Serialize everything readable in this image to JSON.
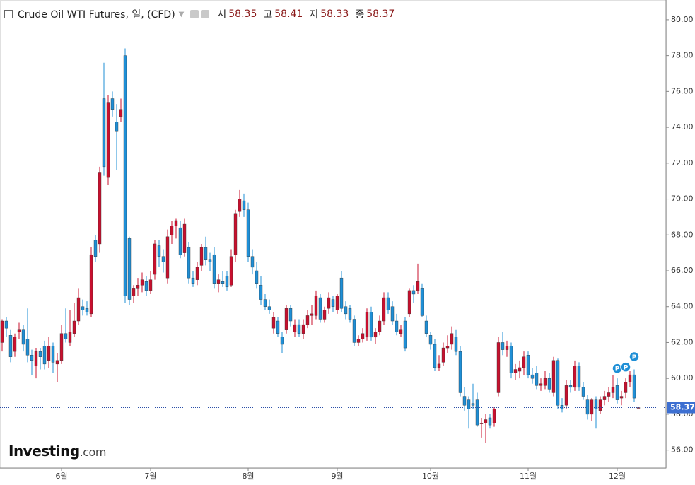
{
  "header": {
    "title": "Crude Oil WTI Futures, 일, (CFD)",
    "open_label": "시",
    "open": 58.35,
    "high_label": "고",
    "high": 58.41,
    "low_label": "저",
    "low": 58.33,
    "close_label": "종",
    "close": 58.37
  },
  "logo": {
    "brand": "Investing",
    "suffix": ".com"
  },
  "chart_data": {
    "type": "candlestick",
    "up_color": "#c8102e",
    "down_color": "#1f8fd6",
    "ylim": [
      55.0,
      81.1
    ],
    "yticks": [
      {
        "value": 56,
        "label": "56.00"
      },
      {
        "value": 58,
        "label": "58.00"
      },
      {
        "value": 60,
        "label": "60.00"
      },
      {
        "value": 62,
        "label": "62.00"
      },
      {
        "value": 64,
        "label": "64.00"
      },
      {
        "value": 66,
        "label": "66.00"
      },
      {
        "value": 68,
        "label": "68.00"
      },
      {
        "value": 70,
        "label": "70.00"
      },
      {
        "value": 72,
        "label": "72.00"
      },
      {
        "value": 74,
        "label": "74.00"
      },
      {
        "value": 76,
        "label": "76.00"
      },
      {
        "value": 78,
        "label": "78.00"
      },
      {
        "value": 80,
        "label": "80.00"
      }
    ],
    "xticks": [
      {
        "value": 14,
        "label": "6월"
      },
      {
        "value": 35,
        "label": "7월"
      },
      {
        "value": 58,
        "label": "8월"
      },
      {
        "value": 79,
        "label": "9월"
      },
      {
        "value": 101,
        "label": "10월"
      },
      {
        "value": 124,
        "label": "11월"
      },
      {
        "value": 145,
        "label": "12월"
      }
    ],
    "annotations": [
      {
        "index": 145,
        "label": "P"
      },
      {
        "index": 147,
        "label": "P"
      },
      {
        "index": 149,
        "label": "P"
      }
    ],
    "ohlc": [
      [
        62.0,
        63.3,
        61.5,
        63.2
      ],
      [
        63.2,
        63.4,
        62.3,
        62.8
      ],
      [
        62.4,
        62.7,
        60.9,
        61.2
      ],
      [
        61.5,
        62.5,
        61.2,
        62.3
      ],
      [
        62.6,
        63.1,
        62.2,
        62.7
      ],
      [
        62.7,
        63.0,
        61.5,
        61.9
      ],
      [
        62.2,
        63.9,
        60.9,
        61.3
      ],
      [
        61.3,
        61.6,
        60.2,
        61.0
      ],
      [
        60.7,
        61.7,
        60.0,
        61.5
      ],
      [
        61.5,
        61.7,
        60.5,
        61.2
      ],
      [
        61.8,
        62.1,
        60.5,
        60.8
      ],
      [
        61.0,
        62.3,
        60.6,
        61.8
      ],
      [
        61.8,
        62.0,
        60.3,
        60.9
      ],
      [
        60.8,
        61.4,
        59.8,
        61.0
      ],
      [
        61.0,
        63.0,
        60.8,
        62.5
      ],
      [
        62.5,
        63.9,
        62.0,
        62.2
      ],
      [
        62.0,
        63.8,
        61.8,
        62.6
      ],
      [
        62.5,
        64.2,
        62.3,
        63.2
      ],
      [
        63.2,
        65.0,
        63.0,
        64.5
      ],
      [
        64.0,
        64.4,
        63.5,
        63.8
      ],
      [
        63.9,
        64.3,
        63.5,
        63.7
      ],
      [
        63.6,
        67.3,
        63.4,
        66.9
      ],
      [
        67.7,
        68.0,
        66.5,
        66.8
      ],
      [
        67.5,
        71.8,
        67.0,
        71.5
      ],
      [
        75.6,
        77.6,
        71.3,
        71.8
      ],
      [
        71.2,
        75.8,
        70.8,
        75.4
      ],
      [
        75.6,
        76.0,
        74.6,
        75.0
      ],
      [
        74.3,
        75.3,
        71.6,
        73.8
      ],
      [
        74.6,
        75.6,
        74.3,
        75.0
      ],
      [
        78.0,
        78.4,
        64.2,
        64.6
      ],
      [
        67.8,
        67.9,
        64.1,
        64.4
      ],
      [
        64.6,
        65.2,
        64.2,
        65.0
      ],
      [
        65.0,
        65.6,
        64.6,
        65.2
      ],
      [
        65.2,
        65.9,
        64.8,
        65.5
      ],
      [
        65.4,
        65.7,
        64.6,
        64.9
      ],
      [
        64.9,
        66.0,
        64.7,
        65.5
      ],
      [
        65.8,
        67.7,
        65.5,
        67.5
      ],
      [
        67.4,
        67.7,
        66.2,
        66.8
      ],
      [
        66.8,
        67.2,
        65.9,
        66.5
      ],
      [
        65.6,
        68.3,
        65.3,
        67.9
      ],
      [
        68.0,
        68.8,
        67.5,
        68.5
      ],
      [
        68.5,
        68.9,
        67.8,
        68.8
      ],
      [
        68.4,
        68.8,
        66.7,
        66.9
      ],
      [
        67.0,
        68.9,
        66.8,
        68.6
      ],
      [
        67.3,
        67.6,
        65.3,
        65.6
      ],
      [
        65.6,
        66.0,
        65.1,
        65.3
      ],
      [
        65.5,
        66.5,
        65.2,
        66.2
      ],
      [
        66.3,
        67.5,
        66.0,
        67.3
      ],
      [
        67.3,
        67.9,
        66.3,
        66.6
      ],
      [
        66.6,
        67.0,
        66.0,
        66.5
      ],
      [
        66.9,
        67.3,
        65.0,
        65.3
      ],
      [
        65.3,
        65.8,
        64.8,
        65.5
      ],
      [
        65.4,
        66.0,
        65.1,
        65.3
      ],
      [
        65.7,
        66.0,
        64.9,
        65.1
      ],
      [
        65.2,
        67.2,
        65.1,
        66.8
      ],
      [
        66.9,
        69.4,
        66.5,
        69.2
      ],
      [
        69.3,
        70.5,
        69.0,
        70.0
      ],
      [
        69.9,
        70.3,
        69.0,
        69.4
      ],
      [
        69.4,
        69.8,
        66.5,
        66.8
      ],
      [
        66.8,
        67.2,
        65.8,
        66.2
      ],
      [
        66.0,
        66.5,
        65.0,
        65.3
      ],
      [
        65.2,
        65.7,
        64.1,
        64.4
      ],
      [
        64.4,
        64.7,
        63.8,
        64.0
      ],
      [
        64.0,
        64.4,
        63.6,
        63.8
      ],
      [
        62.8,
        63.7,
        62.5,
        63.4
      ],
      [
        63.2,
        63.4,
        62.3,
        62.5
      ],
      [
        62.3,
        62.6,
        61.4,
        61.9
      ],
      [
        62.7,
        64.1,
        62.5,
        63.9
      ],
      [
        63.9,
        64.1,
        62.9,
        63.2
      ],
      [
        62.6,
        63.3,
        62.3,
        63.0
      ],
      [
        63.0,
        63.3,
        62.3,
        62.5
      ],
      [
        62.5,
        63.3,
        62.2,
        63.0
      ],
      [
        63.0,
        63.8,
        62.8,
        63.5
      ],
      [
        63.5,
        64.1,
        63.0,
        63.6
      ],
      [
        63.5,
        64.9,
        63.3,
        64.6
      ],
      [
        64.5,
        64.7,
        63.1,
        63.3
      ],
      [
        63.3,
        64.0,
        63.1,
        63.8
      ],
      [
        63.9,
        64.8,
        63.6,
        64.5
      ],
      [
        64.4,
        64.6,
        63.7,
        64.0
      ],
      [
        63.8,
        64.7,
        63.6,
        64.6
      ],
      [
        65.6,
        66.0,
        63.7,
        63.9
      ],
      [
        64.0,
        64.3,
        63.3,
        63.6
      ],
      [
        63.9,
        64.1,
        63.1,
        63.3
      ],
      [
        63.3,
        63.5,
        61.8,
        62.0
      ],
      [
        62.0,
        62.4,
        61.8,
        62.2
      ],
      [
        62.2,
        62.8,
        62.0,
        62.5
      ],
      [
        62.3,
        63.9,
        62.1,
        63.7
      ],
      [
        63.7,
        64.0,
        62.1,
        62.3
      ],
      [
        62.3,
        62.8,
        61.9,
        62.6
      ],
      [
        62.6,
        63.5,
        62.4,
        63.2
      ],
      [
        63.2,
        64.8,
        63.0,
        64.5
      ],
      [
        64.5,
        64.8,
        63.6,
        63.8
      ],
      [
        64.0,
        64.3,
        63.0,
        63.2
      ],
      [
        63.2,
        63.6,
        62.4,
        62.6
      ],
      [
        62.5,
        63.0,
        62.3,
        62.7
      ],
      [
        63.2,
        63.4,
        61.5,
        61.7
      ],
      [
        63.6,
        65.0,
        63.4,
        64.9
      ],
      [
        64.9,
        65.2,
        64.2,
        64.7
      ],
      [
        64.9,
        66.4,
        64.7,
        65.4
      ],
      [
        65.0,
        65.3,
        63.4,
        63.5
      ],
      [
        63.2,
        63.5,
        62.3,
        62.5
      ],
      [
        62.4,
        62.6,
        61.6,
        61.9
      ],
      [
        61.9,
        62.2,
        60.4,
        60.6
      ],
      [
        60.6,
        61.3,
        60.4,
        60.8
      ],
      [
        60.9,
        62.0,
        60.7,
        61.7
      ],
      [
        61.7,
        62.4,
        61.4,
        61.8
      ],
      [
        61.9,
        62.9,
        61.6,
        62.5
      ],
      [
        62.3,
        62.7,
        61.3,
        61.5
      ],
      [
        61.5,
        61.8,
        59.0,
        59.2
      ],
      [
        59.0,
        59.5,
        58.2,
        58.5
      ],
      [
        58.8,
        59.0,
        57.2,
        58.3
      ],
      [
        58.6,
        59.7,
        58.3,
        58.5
      ],
      [
        58.8,
        59.2,
        57.3,
        57.4
      ],
      [
        57.5,
        57.8,
        56.7,
        57.5
      ],
      [
        57.5,
        58.0,
        56.4,
        57.7
      ],
      [
        57.8,
        58.0,
        57.2,
        57.4
      ],
      [
        57.5,
        58.4,
        57.3,
        58.3
      ],
      [
        59.2,
        62.3,
        59.0,
        62.0
      ],
      [
        62.0,
        62.6,
        61.3,
        61.6
      ],
      [
        61.6,
        62.1,
        61.2,
        61.8
      ],
      [
        61.8,
        62.0,
        60.0,
        60.3
      ],
      [
        60.3,
        60.8,
        59.9,
        60.5
      ],
      [
        60.4,
        61.0,
        60.0,
        60.6
      ],
      [
        60.6,
        61.5,
        60.2,
        61.2
      ],
      [
        61.3,
        61.5,
        60.0,
        60.2
      ],
      [
        60.2,
        60.6,
        59.7,
        60.0
      ],
      [
        60.3,
        60.7,
        59.4,
        59.6
      ],
      [
        59.6,
        60.0,
        59.3,
        59.7
      ],
      [
        59.6,
        60.4,
        59.4,
        60.0
      ],
      [
        60.0,
        60.3,
        59.2,
        59.4
      ],
      [
        59.2,
        61.2,
        59.0,
        61.0
      ],
      [
        61.0,
        61.1,
        58.3,
        58.5
      ],
      [
        58.5,
        58.9,
        58.1,
        58.3
      ],
      [
        58.5,
        59.9,
        58.3,
        59.6
      ],
      [
        59.6,
        59.9,
        59.2,
        59.5
      ],
      [
        59.5,
        61.0,
        59.3,
        60.7
      ],
      [
        60.7,
        60.9,
        59.3,
        59.5
      ],
      [
        59.5,
        59.8,
        58.8,
        59.0
      ],
      [
        58.8,
        59.1,
        57.7,
        58.0
      ],
      [
        58.0,
        58.9,
        57.6,
        58.8
      ],
      [
        58.8,
        59.0,
        57.2,
        58.3
      ],
      [
        58.2,
        59.0,
        58.0,
        58.8
      ],
      [
        58.8,
        59.3,
        58.5,
        59.0
      ],
      [
        59.0,
        59.5,
        58.7,
        59.2
      ],
      [
        59.2,
        60.2,
        58.9,
        59.5
      ],
      [
        59.6,
        60.0,
        58.6,
        58.8
      ],
      [
        58.9,
        59.3,
        58.5,
        59.0
      ],
      [
        59.2,
        60.0,
        58.9,
        59.8
      ],
      [
        59.8,
        60.4,
        59.5,
        60.2
      ],
      [
        60.2,
        60.5,
        58.7,
        58.9
      ],
      [
        58.35,
        58.41,
        58.33,
        58.37
      ]
    ]
  }
}
